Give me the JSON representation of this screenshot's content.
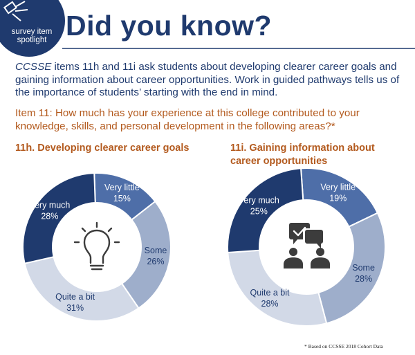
{
  "badge": {
    "line1": "survey item",
    "line2": "spotlight"
  },
  "headline": "Did you know?",
  "intro": {
    "em": "CCSSE",
    "text": " items 11h and 11i ask students about developing clearer career goals and gaining information about career opportunities. Work in guided pathways tells us of the importance of students’ starting with the end in mind."
  },
  "question": "Item 11: How much has your experience at this college contributed to your knowledge, skills, and personal development in the following areas?*",
  "footnote": "* Based on CCSSE 2018 Cohort Data",
  "colors": {
    "navy": "#1f3a6e",
    "mid_blue": "#4e6ea8",
    "light_blue": "#9eaecb",
    "pale_blue": "#d2d9e7",
    "orange": "#b35a1e",
    "icon_gray": "#3c3c3c"
  },
  "icons": [
    "lightbulb-icon",
    "chat-people-icon"
  ],
  "chart_data": [
    {
      "type": "pie",
      "title": "11h. Developing clearer career goals",
      "categories": [
        "Very little",
        "Some",
        "Quite a bit",
        "Very much"
      ],
      "values": [
        15,
        26,
        31,
        28
      ],
      "labels": [
        "15%",
        "26%",
        "31%",
        "28%"
      ],
      "colors": [
        "#4e6ea8",
        "#9eaecb",
        "#d2d9e7",
        "#1f3a6e"
      ],
      "label_colors": [
        "#ffffff",
        "#1f3a6e",
        "#1f3a6e",
        "#ffffff"
      ]
    },
    {
      "type": "pie",
      "title": "11i. Gaining information about career opportunities",
      "categories": [
        "Very little",
        "Some",
        "Quite a bit",
        "Very much"
      ],
      "values": [
        19,
        28,
        28,
        25
      ],
      "labels": [
        "19%",
        "28%",
        "28%",
        "25%"
      ],
      "colors": [
        "#4e6ea8",
        "#9eaecb",
        "#d2d9e7",
        "#1f3a6e"
      ],
      "label_colors": [
        "#ffffff",
        "#1f3a6e",
        "#1f3a6e",
        "#ffffff"
      ]
    }
  ]
}
